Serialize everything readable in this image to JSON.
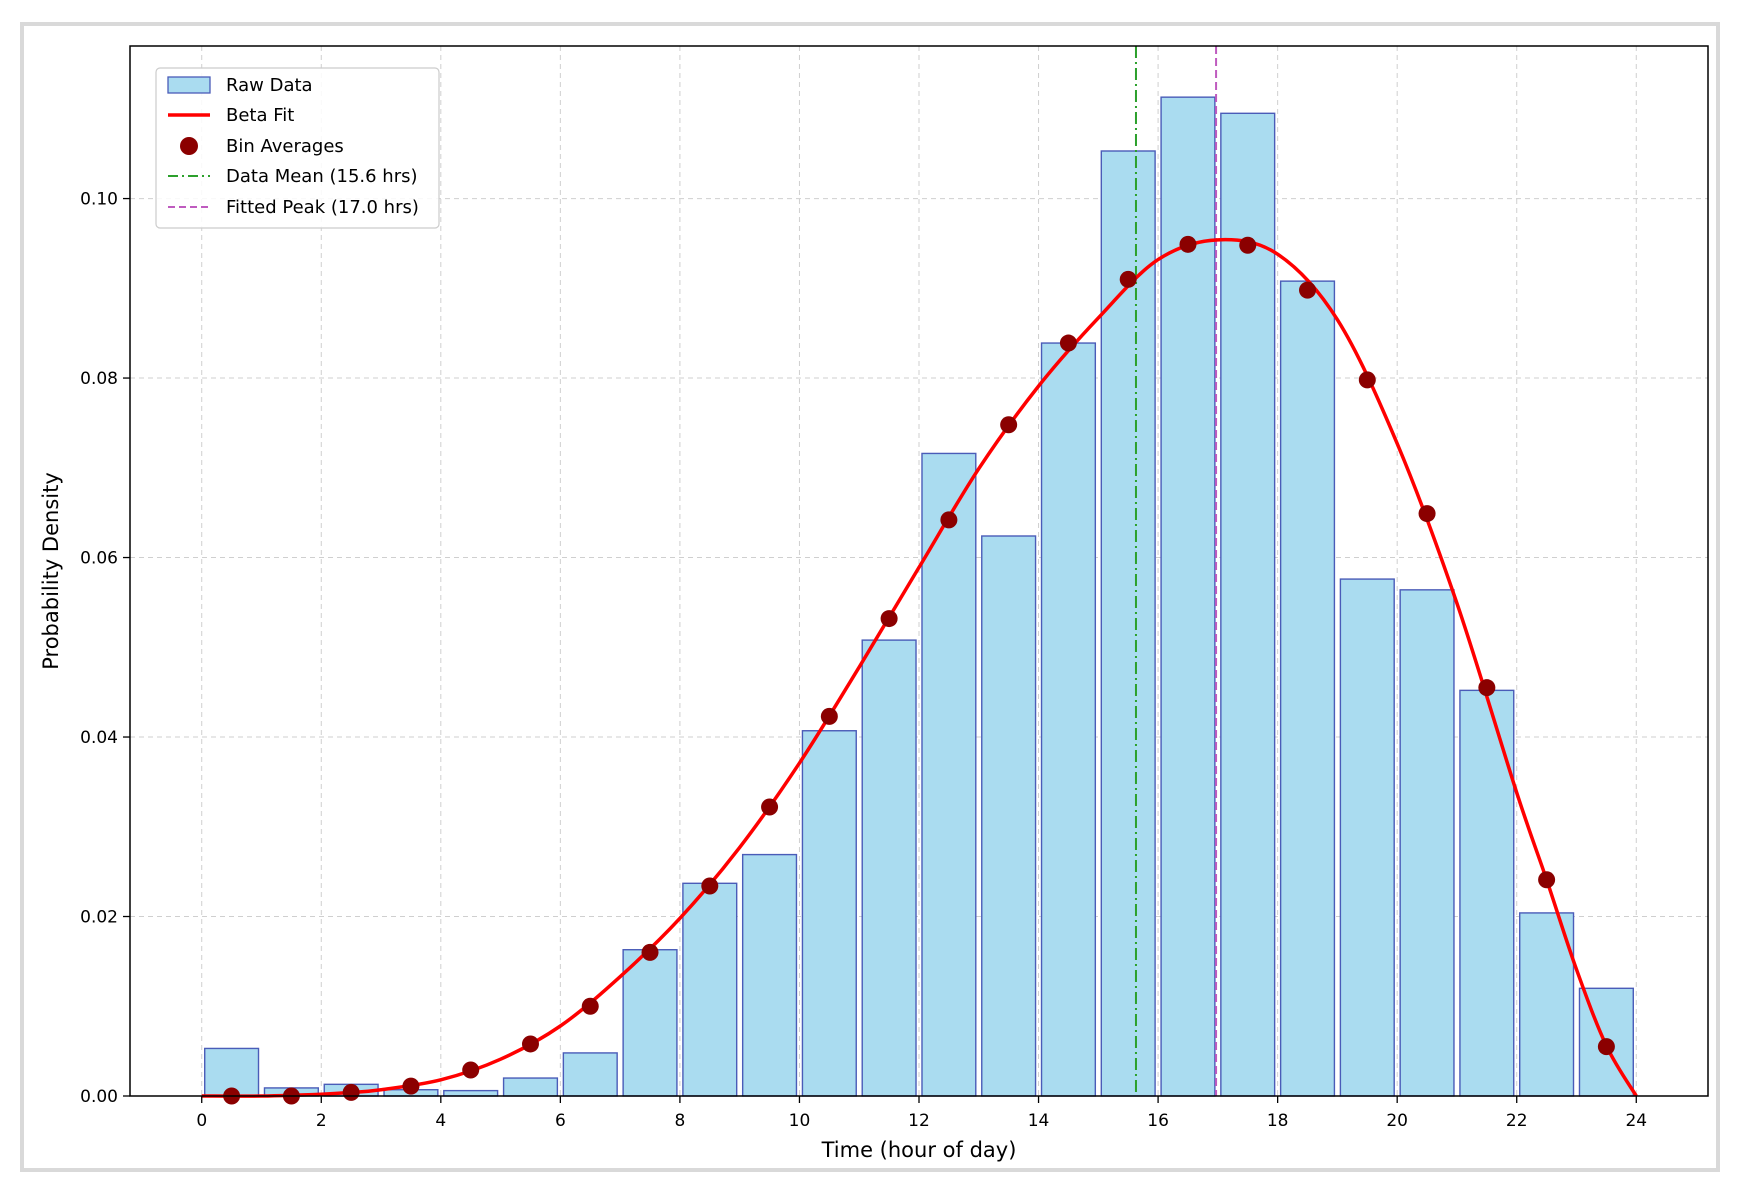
{
  "chart_data": {
    "type": "bar",
    "title": "",
    "xlabel": "Time (hour of day)",
    "ylabel": "Probability Density",
    "xlim": [
      -1.2,
      25.2
    ],
    "ylim": [
      0,
      0.117
    ],
    "xticks": [
      0,
      2,
      4,
      6,
      8,
      10,
      12,
      14,
      16,
      18,
      20,
      22,
      24
    ],
    "xtick_labels": [
      "0",
      "2",
      "4",
      "6",
      "8",
      "10",
      "12",
      "14",
      "16",
      "18",
      "20",
      "22",
      "24"
    ],
    "yticks": [
      0.0,
      0.02,
      0.04,
      0.06,
      0.08,
      0.1
    ],
    "ytick_labels": [
      "0.00",
      "0.02",
      "0.04",
      "0.06",
      "0.08",
      "0.10"
    ],
    "grid": true,
    "legend_position": "top-left",
    "series": [
      {
        "name": "Raw Data",
        "kind": "histogram",
        "color": "#aadcf0",
        "edge_color": "#4a5cb8",
        "bin_width": 1,
        "bin_starts": [
          0,
          1,
          2,
          3,
          4,
          5,
          6,
          7,
          8,
          9,
          10,
          11,
          12,
          13,
          14,
          15,
          16,
          17,
          18,
          19,
          20,
          21,
          22,
          23
        ],
        "values": [
          0.0053,
          0.0009,
          0.0013,
          0.0007,
          0.0006,
          0.002,
          0.0048,
          0.0163,
          0.0237,
          0.0269,
          0.0407,
          0.0508,
          0.0716,
          0.0624,
          0.0839,
          0.1053,
          0.1113,
          0.1095,
          0.0908,
          0.0576,
          0.0564,
          0.0452,
          0.0204,
          0.012
        ]
      },
      {
        "name": "Beta Fit",
        "kind": "line",
        "color": "#ff0000",
        "x": [
          0,
          1,
          2,
          2.5,
          3,
          4,
          5,
          6,
          7,
          8,
          9,
          10,
          11,
          12,
          13,
          14,
          15,
          16,
          17,
          18,
          19,
          20,
          21,
          22,
          22.5,
          23,
          23.5,
          24
        ],
        "values": [
          0,
          0,
          0.0002,
          0.0004,
          0.0007,
          0.0018,
          0.0041,
          0.0078,
          0.0133,
          0.0198,
          0.0277,
          0.0371,
          0.0478,
          0.0589,
          0.0699,
          0.0791,
          0.0867,
          0.0932,
          0.0954,
          0.0938,
          0.0865,
          0.0727,
          0.0549,
          0.0338,
          0.0241,
          0.0141,
          0.0056,
          0
        ]
      },
      {
        "name": "Bin Averages",
        "kind": "scatter",
        "color": "#8b0000",
        "x": [
          0.5,
          1.5,
          2.5,
          3.5,
          4.5,
          5.5,
          6.5,
          7.5,
          8.5,
          9.5,
          10.5,
          11.5,
          12.5,
          13.5,
          14.5,
          15.5,
          16.5,
          17.5,
          18.5,
          19.5,
          20.5,
          21.5,
          22.5,
          23.5
        ],
        "values": [
          0,
          0,
          0.0004,
          0.0011,
          0.0029,
          0.0058,
          0.01,
          0.016,
          0.0234,
          0.0322,
          0.0423,
          0.0532,
          0.0642,
          0.0748,
          0.0839,
          0.091,
          0.0949,
          0.0948,
          0.0898,
          0.0798,
          0.0649,
          0.0455,
          0.0241,
          0.0055
        ]
      },
      {
        "name": "Data Mean (15.6 hrs)",
        "kind": "vline",
        "color": "#2ca02c",
        "x": 15.63
      },
      {
        "name": "Fitted Peak (17.0 hrs)",
        "kind": "vline",
        "color": "#bf5bbf",
        "x": 16.97
      }
    ]
  }
}
